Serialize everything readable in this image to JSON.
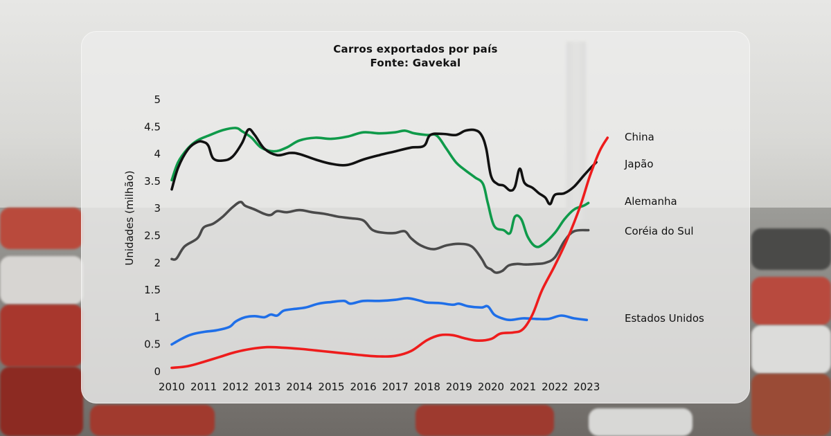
{
  "chart_data": {
    "type": "line",
    "title": "Carros exportados por país",
    "subtitle": "Fonte: Gavekal",
    "xlabel": "",
    "ylabel": "Unidades (milhão)",
    "xlim": [
      2010,
      2023.7
    ],
    "ylim": [
      0,
      5
    ],
    "x_ticks": [
      "2010",
      "2011",
      "2012",
      "2013",
      "2014",
      "2015",
      "2016",
      "2017",
      "2018",
      "2019",
      "2020",
      "2021",
      "2022",
      "2023"
    ],
    "y_ticks": [
      "0",
      "0.5",
      "1",
      "1.5",
      "2",
      "2.5",
      "3",
      "3.5",
      "4",
      "4.5",
      "5"
    ],
    "grid": false,
    "legend": "inline labels at line ends (right)",
    "series": [
      {
        "name": "China",
        "color": "#ee1c1c",
        "points": [
          [
            2010,
            0.07
          ],
          [
            2010.5,
            0.1
          ],
          [
            2011,
            0.18
          ],
          [
            2011.5,
            0.27
          ],
          [
            2012,
            0.36
          ],
          [
            2012.5,
            0.42
          ],
          [
            2013,
            0.45
          ],
          [
            2013.5,
            0.44
          ],
          [
            2014,
            0.42
          ],
          [
            2014.5,
            0.39
          ],
          [
            2015,
            0.36
          ],
          [
            2015.5,
            0.33
          ],
          [
            2016,
            0.3
          ],
          [
            2016.5,
            0.28
          ],
          [
            2017,
            0.29
          ],
          [
            2017.5,
            0.38
          ],
          [
            2018,
            0.58
          ],
          [
            2018.4,
            0.67
          ],
          [
            2018.8,
            0.67
          ],
          [
            2019.2,
            0.61
          ],
          [
            2019.6,
            0.57
          ],
          [
            2020,
            0.6
          ],
          [
            2020.3,
            0.7
          ],
          [
            2020.7,
            0.72
          ],
          [
            2021,
            0.78
          ],
          [
            2021.3,
            1.05
          ],
          [
            2021.6,
            1.5
          ],
          [
            2022,
            1.95
          ],
          [
            2022.4,
            2.45
          ],
          [
            2022.8,
            3.05
          ],
          [
            2023.1,
            3.6
          ],
          [
            2023.4,
            4.05
          ],
          [
            2023.65,
            4.3
          ]
        ]
      },
      {
        "name": "Japão",
        "color": "#111111",
        "points": [
          [
            2010,
            3.35
          ],
          [
            2010.2,
            3.75
          ],
          [
            2010.5,
            4.08
          ],
          [
            2010.8,
            4.22
          ],
          [
            2011,
            4.22
          ],
          [
            2011.15,
            4.15
          ],
          [
            2011.3,
            3.92
          ],
          [
            2011.6,
            3.88
          ],
          [
            2011.9,
            3.95
          ],
          [
            2012.2,
            4.2
          ],
          [
            2012.4,
            4.45
          ],
          [
            2012.6,
            4.35
          ],
          [
            2012.9,
            4.1
          ],
          [
            2013.3,
            3.98
          ],
          [
            2013.7,
            4.02
          ],
          [
            2014,
            4.0
          ],
          [
            2014.5,
            3.9
          ],
          [
            2015,
            3.82
          ],
          [
            2015.5,
            3.8
          ],
          [
            2016,
            3.9
          ],
          [
            2016.5,
            3.98
          ],
          [
            2017,
            4.05
          ],
          [
            2017.5,
            4.12
          ],
          [
            2017.9,
            4.15
          ],
          [
            2018.1,
            4.35
          ],
          [
            2018.5,
            4.37
          ],
          [
            2018.9,
            4.35
          ],
          [
            2019.2,
            4.43
          ],
          [
            2019.5,
            4.44
          ],
          [
            2019.7,
            4.35
          ],
          [
            2019.85,
            4.1
          ],
          [
            2020,
            3.6
          ],
          [
            2020.2,
            3.45
          ],
          [
            2020.4,
            3.42
          ],
          [
            2020.6,
            3.33
          ],
          [
            2020.75,
            3.4
          ],
          [
            2020.9,
            3.73
          ],
          [
            2021.05,
            3.47
          ],
          [
            2021.3,
            3.38
          ],
          [
            2021.5,
            3.28
          ],
          [
            2021.7,
            3.2
          ],
          [
            2021.85,
            3.08
          ],
          [
            2022.0,
            3.25
          ],
          [
            2022.3,
            3.28
          ],
          [
            2022.6,
            3.4
          ],
          [
            2022.9,
            3.6
          ],
          [
            2023.1,
            3.73
          ],
          [
            2023.3,
            3.85
          ]
        ]
      },
      {
        "name": "Alemanha",
        "color": "#0f9a4a",
        "points": [
          [
            2010,
            3.52
          ],
          [
            2010.2,
            3.85
          ],
          [
            2010.5,
            4.1
          ],
          [
            2010.8,
            4.25
          ],
          [
            2011.2,
            4.35
          ],
          [
            2011.6,
            4.44
          ],
          [
            2012,
            4.48
          ],
          [
            2012.2,
            4.42
          ],
          [
            2012.5,
            4.3
          ],
          [
            2012.8,
            4.12
          ],
          [
            2013.2,
            4.05
          ],
          [
            2013.6,
            4.12
          ],
          [
            2014,
            4.25
          ],
          [
            2014.5,
            4.3
          ],
          [
            2015,
            4.28
          ],
          [
            2015.5,
            4.32
          ],
          [
            2016,
            4.4
          ],
          [
            2016.5,
            4.38
          ],
          [
            2017,
            4.4
          ],
          [
            2017.3,
            4.43
          ],
          [
            2017.6,
            4.38
          ],
          [
            2018,
            4.35
          ],
          [
            2018.3,
            4.34
          ],
          [
            2018.6,
            4.1
          ],
          [
            2018.9,
            3.85
          ],
          [
            2019.2,
            3.7
          ],
          [
            2019.5,
            3.57
          ],
          [
            2019.75,
            3.45
          ],
          [
            2019.9,
            3.1
          ],
          [
            2020.1,
            2.68
          ],
          [
            2020.4,
            2.6
          ],
          [
            2020.6,
            2.55
          ],
          [
            2020.75,
            2.85
          ],
          [
            2020.95,
            2.8
          ],
          [
            2021.15,
            2.48
          ],
          [
            2021.4,
            2.3
          ],
          [
            2021.65,
            2.35
          ],
          [
            2022,
            2.55
          ],
          [
            2022.3,
            2.8
          ],
          [
            2022.6,
            2.98
          ],
          [
            2022.9,
            3.05
          ],
          [
            2023.05,
            3.1
          ]
        ]
      },
      {
        "name": "Coréia do Sul",
        "color": "#4a4a4a",
        "points": [
          [
            2010,
            2.07
          ],
          [
            2010.15,
            2.08
          ],
          [
            2010.4,
            2.3
          ],
          [
            2010.8,
            2.45
          ],
          [
            2011,
            2.65
          ],
          [
            2011.3,
            2.72
          ],
          [
            2011.6,
            2.85
          ],
          [
            2011.9,
            3.02
          ],
          [
            2012.15,
            3.12
          ],
          [
            2012.3,
            3.05
          ],
          [
            2012.6,
            2.98
          ],
          [
            2012.9,
            2.9
          ],
          [
            2013.1,
            2.88
          ],
          [
            2013.3,
            2.95
          ],
          [
            2013.6,
            2.93
          ],
          [
            2014,
            2.97
          ],
          [
            2014.4,
            2.93
          ],
          [
            2014.8,
            2.9
          ],
          [
            2015.2,
            2.85
          ],
          [
            2015.6,
            2.82
          ],
          [
            2016,
            2.78
          ],
          [
            2016.3,
            2.6
          ],
          [
            2016.7,
            2.55
          ],
          [
            2017,
            2.55
          ],
          [
            2017.3,
            2.58
          ],
          [
            2017.5,
            2.45
          ],
          [
            2017.8,
            2.32
          ],
          [
            2018.2,
            2.25
          ],
          [
            2018.6,
            2.32
          ],
          [
            2019,
            2.35
          ],
          [
            2019.4,
            2.3
          ],
          [
            2019.7,
            2.08
          ],
          [
            2019.85,
            1.93
          ],
          [
            2020,
            1.88
          ],
          [
            2020.15,
            1.82
          ],
          [
            2020.35,
            1.85
          ],
          [
            2020.55,
            1.95
          ],
          [
            2020.8,
            1.98
          ],
          [
            2021.1,
            1.97
          ],
          [
            2021.4,
            1.98
          ],
          [
            2021.7,
            2.0
          ],
          [
            2022,
            2.1
          ],
          [
            2022.3,
            2.4
          ],
          [
            2022.6,
            2.58
          ],
          [
            2023.05,
            2.6
          ]
        ]
      },
      {
        "name": "Estados Unidos",
        "color": "#1f6fe8",
        "points": [
          [
            2010,
            0.5
          ],
          [
            2010.3,
            0.6
          ],
          [
            2010.6,
            0.68
          ],
          [
            2011,
            0.73
          ],
          [
            2011.4,
            0.76
          ],
          [
            2011.8,
            0.82
          ],
          [
            2012,
            0.92
          ],
          [
            2012.3,
            1.0
          ],
          [
            2012.6,
            1.02
          ],
          [
            2012.9,
            1.0
          ],
          [
            2013.1,
            1.05
          ],
          [
            2013.3,
            1.03
          ],
          [
            2013.5,
            1.12
          ],
          [
            2013.8,
            1.15
          ],
          [
            2014.2,
            1.18
          ],
          [
            2014.6,
            1.25
          ],
          [
            2015,
            1.28
          ],
          [
            2015.4,
            1.3
          ],
          [
            2015.6,
            1.25
          ],
          [
            2016,
            1.3
          ],
          [
            2016.5,
            1.3
          ],
          [
            2017,
            1.32
          ],
          [
            2017.4,
            1.35
          ],
          [
            2017.8,
            1.3
          ],
          [
            2018,
            1.27
          ],
          [
            2018.4,
            1.26
          ],
          [
            2018.8,
            1.23
          ],
          [
            2019,
            1.25
          ],
          [
            2019.3,
            1.2
          ],
          [
            2019.7,
            1.18
          ],
          [
            2019.9,
            1.2
          ],
          [
            2020.1,
            1.05
          ],
          [
            2020.35,
            0.98
          ],
          [
            2020.6,
            0.95
          ],
          [
            2021,
            0.98
          ],
          [
            2021.4,
            0.97
          ],
          [
            2021.8,
            0.97
          ],
          [
            2022.2,
            1.03
          ],
          [
            2022.6,
            0.98
          ],
          [
            2023.0,
            0.95
          ]
        ]
      }
    ]
  }
}
